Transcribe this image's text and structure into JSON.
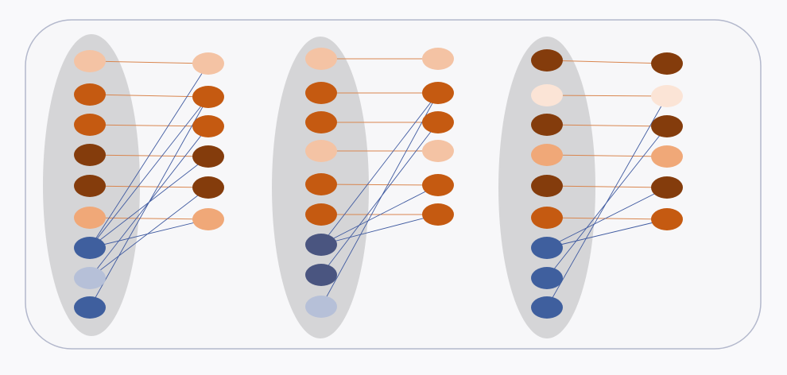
{
  "colors": {
    "background": "#f9f9fb",
    "panel_border": "#b3b8cc",
    "panel_fill": "#f7f7f9",
    "group_ellipse": "#d5d5d7",
    "orange_link": "#d9864f",
    "blue_link": "#3f5aa0",
    "palette": {
      "peach": "#f4c3a4",
      "orange": "#c55a11",
      "brown": "#843c0c",
      "salmon": "#f0a878",
      "light_peach": "#fbe4d6",
      "blue": "#3f5f9e",
      "slate": "#4a5580",
      "pale_blue": "#b6c0d8"
    }
  },
  "groups": [
    {
      "name": "group-1",
      "left_nodes": [
        "peach",
        "orange",
        "orange",
        "brown",
        "brown",
        "salmon",
        "blue",
        "pale_blue",
        "blue"
      ],
      "right_nodes": [
        "peach",
        "orange",
        "orange",
        "brown",
        "brown",
        "salmon"
      ],
      "orange_links": [
        [
          0,
          0
        ],
        [
          1,
          1
        ],
        [
          2,
          2
        ],
        [
          3,
          3
        ],
        [
          4,
          4
        ],
        [
          5,
          5
        ]
      ],
      "blue_links": [
        [
          6,
          0
        ],
        [
          6,
          1
        ],
        [
          6,
          3
        ],
        [
          6,
          5
        ],
        [
          7,
          2
        ],
        [
          7,
          4
        ],
        [
          8,
          1
        ]
      ]
    },
    {
      "name": "group-2",
      "left_nodes": [
        "peach",
        "orange",
        "orange",
        "peach",
        "orange",
        "orange",
        "slate",
        "slate",
        "pale_blue"
      ],
      "right_nodes": [
        "peach",
        "orange",
        "orange",
        "peach",
        "orange",
        "orange"
      ],
      "orange_links": [
        [
          0,
          0
        ],
        [
          1,
          1
        ],
        [
          2,
          2
        ],
        [
          3,
          3
        ],
        [
          4,
          4
        ],
        [
          5,
          5
        ]
      ],
      "blue_links": [
        [
          6,
          1
        ],
        [
          6,
          4
        ],
        [
          6,
          5
        ],
        [
          7,
          2
        ],
        [
          8,
          1
        ]
      ]
    },
    {
      "name": "group-3",
      "left_nodes": [
        "brown",
        "light_peach",
        "brown",
        "salmon",
        "brown",
        "orange",
        "blue",
        "blue",
        "blue"
      ],
      "right_nodes": [
        "brown",
        "light_peach",
        "brown",
        "salmon",
        "brown",
        "orange"
      ],
      "orange_links": [
        [
          0,
          0
        ],
        [
          1,
          1
        ],
        [
          2,
          2
        ],
        [
          3,
          3
        ],
        [
          4,
          4
        ],
        [
          5,
          5
        ]
      ],
      "blue_links": [
        [
          6,
          4
        ],
        [
          6,
          5
        ],
        [
          7,
          2
        ],
        [
          8,
          1
        ]
      ]
    }
  ]
}
